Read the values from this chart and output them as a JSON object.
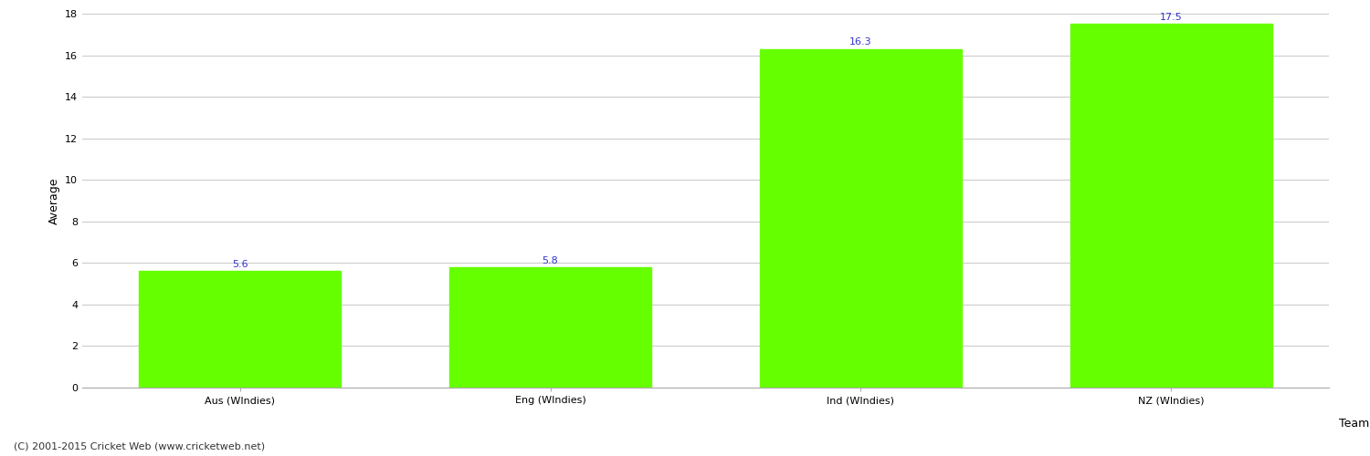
{
  "categories": [
    "Aus (WIndies)",
    "Eng (WIndies)",
    "Ind (WIndies)",
    "NZ (WIndies)"
  ],
  "values": [
    5.6,
    5.8,
    16.3,
    17.5
  ],
  "bar_color": "#66ff00",
  "bar_edge_color": "#66ff00",
  "value_label_color": "#3333cc",
  "value_label_fontsize": 8,
  "xlabel": "Team",
  "ylabel": "Average",
  "ylim": [
    0,
    18
  ],
  "yticks": [
    0,
    2,
    4,
    6,
    8,
    10,
    12,
    14,
    16,
    18
  ],
  "grid_color": "#cccccc",
  "background_color": "#ffffff",
  "axis_label_fontsize": 9,
  "tick_fontsize": 8,
  "footnote": "(C) 2001-2015 Cricket Web (www.cricketweb.net)",
  "footnote_fontsize": 8,
  "footnote_color": "#333333",
  "bar_width": 0.65
}
